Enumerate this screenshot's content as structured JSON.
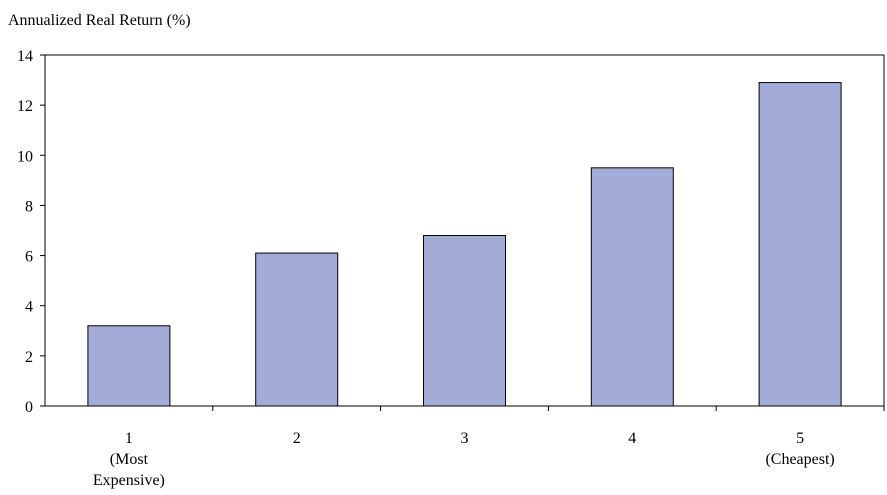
{
  "chart_data": {
    "type": "bar",
    "ylabel": "Annualized Real Return (%)",
    "title": "",
    "xlabel": "",
    "ylim": [
      0,
      14
    ],
    "yticks": [
      0,
      2,
      4,
      6,
      8,
      10,
      12,
      14
    ],
    "grid": false,
    "legend": "none",
    "categories": [
      [
        "1",
        "(Most",
        "Expensive)"
      ],
      [
        "2"
      ],
      [
        "3"
      ],
      [
        "4"
      ],
      [
        "5",
        "(Cheapest)"
      ]
    ],
    "values": [
      3.2,
      6.1,
      6.8,
      9.5,
      12.9
    ],
    "bar_color": "#a3acd7",
    "bar_stroke": "#000000"
  }
}
